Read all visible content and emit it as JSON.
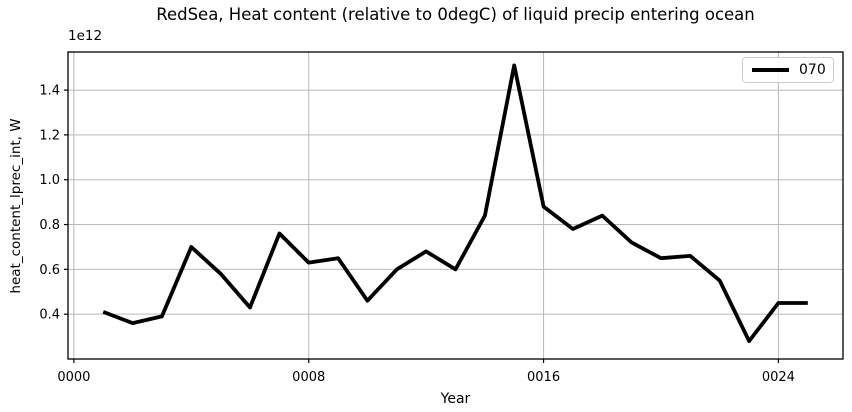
{
  "title": "RedSea, Heat content (relative to 0degC) of liquid precip entering ocean",
  "offset_text": "1e12",
  "axis": {
    "xlabel": "Year",
    "ylabel": "heat_content_lprec_int, W"
  },
  "legend": {
    "position": "upper right",
    "entries": [
      {
        "label": "070",
        "color": "#000000"
      }
    ]
  },
  "colors": {
    "line": "#000000",
    "grid": "#b8b8b8",
    "spine": "#000000",
    "text": "#000000",
    "legend_border": "#cccccc"
  },
  "chart_data": {
    "type": "line",
    "title": "RedSea, Heat content (relative to 0degC) of liquid precip entering ocean",
    "xlabel": "Year",
    "ylabel": "heat_content_lprec_int, W",
    "y_unit_multiplier": "1e12",
    "grid": true,
    "legend_position": "upper right",
    "xlim": [
      -0.2,
      26.2
    ],
    "ylim": [
      0.2,
      1.57
    ],
    "xticks": {
      "values": [
        0,
        8,
        16,
        24
      ],
      "labels": [
        "0000",
        "0008",
        "0016",
        "0024"
      ]
    },
    "yticks": {
      "values": [
        0.4,
        0.6,
        0.8,
        1.0,
        1.2,
        1.4
      ],
      "labels": [
        "0.4",
        "0.6",
        "0.8",
        "1.0",
        "1.2",
        "1.4"
      ]
    },
    "series": [
      {
        "name": "070",
        "color": "#000000",
        "line_width": 3.8,
        "x": [
          1,
          2,
          3,
          4,
          5,
          6,
          7,
          8,
          9,
          10,
          11,
          12,
          13,
          14,
          15,
          16,
          17,
          18,
          19,
          20,
          21,
          22,
          23,
          24,
          25
        ],
        "y_1e12": [
          0.41,
          0.36,
          0.39,
          0.7,
          0.58,
          0.43,
          0.76,
          0.63,
          0.65,
          0.46,
          0.6,
          0.68,
          0.6,
          0.84,
          1.51,
          0.88,
          0.78,
          0.84,
          0.72,
          0.65,
          0.66,
          0.55,
          0.28,
          0.45,
          0.45
        ]
      }
    ]
  }
}
